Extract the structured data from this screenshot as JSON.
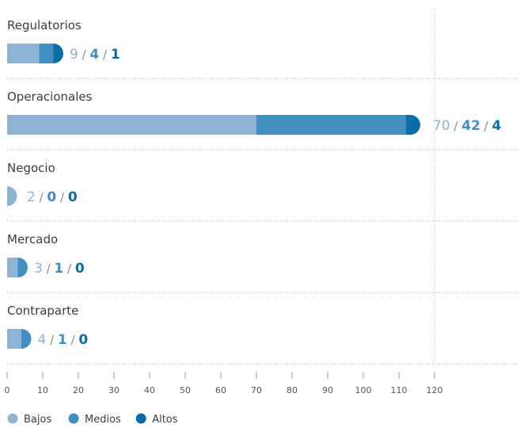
{
  "chart_data": {
    "type": "bar",
    "orientation": "horizontal",
    "stacked": true,
    "categories": [
      "Regulatorios",
      "Operacionales",
      "Negocio",
      "Mercado",
      "Contraparte"
    ],
    "series": [
      {
        "name": "Bajos",
        "values": [
          9,
          70,
          2,
          3,
          4
        ],
        "color": "#8db4d6"
      },
      {
        "name": "Medios",
        "values": [
          4,
          42,
          0,
          1,
          1
        ],
        "color": "#438ec0"
      },
      {
        "name": "Altos",
        "values": [
          1,
          4,
          0,
          0,
          0
        ],
        "color": "#0a6da5"
      }
    ],
    "xlim": [
      0,
      120
    ],
    "xticks": [
      0,
      10,
      20,
      30,
      40,
      50,
      60,
      70,
      80,
      90,
      100,
      110,
      120
    ],
    "legend_position": "bottom-left",
    "value_separator": "/",
    "grid": false
  }
}
